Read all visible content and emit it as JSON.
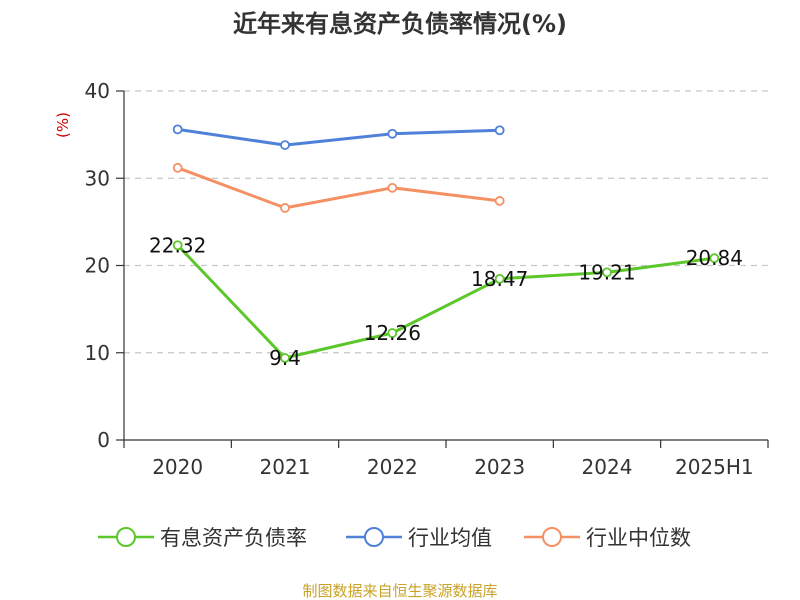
{
  "chart_data": {
    "type": "line",
    "title": "近年来有息资产负债率情况(%)",
    "ylabel": "(%)",
    "categories": [
      "2020",
      "2021",
      "2022",
      "2023",
      "2024",
      "2025H1"
    ],
    "ylim": [
      0,
      40
    ],
    "yticks": [
      0,
      10,
      20,
      30,
      40
    ],
    "grid": "horizontal-dashed",
    "legend_position": "bottom",
    "series": [
      {
        "name": "有息资产负债率",
        "color": "#5cc72a",
        "labeled": true,
        "values": [
          22.32,
          9.4,
          12.26,
          18.47,
          19.21,
          20.84
        ],
        "labels": [
          "22.32",
          "9.4",
          "12.26",
          "18.47",
          "19.21",
          "20.84"
        ]
      },
      {
        "name": "行业均值",
        "color": "#4f81d9",
        "labeled": false,
        "values": [
          35.6,
          33.8,
          35.1,
          35.5,
          null,
          null
        ]
      },
      {
        "name": "行业中位数",
        "color": "#f59063",
        "labeled": false,
        "values": [
          31.2,
          26.6,
          28.9,
          27.4,
          null,
          null
        ]
      }
    ]
  },
  "source": {
    "text": "制图数据来自恒生聚源数据库",
    "color": "#c9a227"
  },
  "ylabel_color": "#cc0000"
}
